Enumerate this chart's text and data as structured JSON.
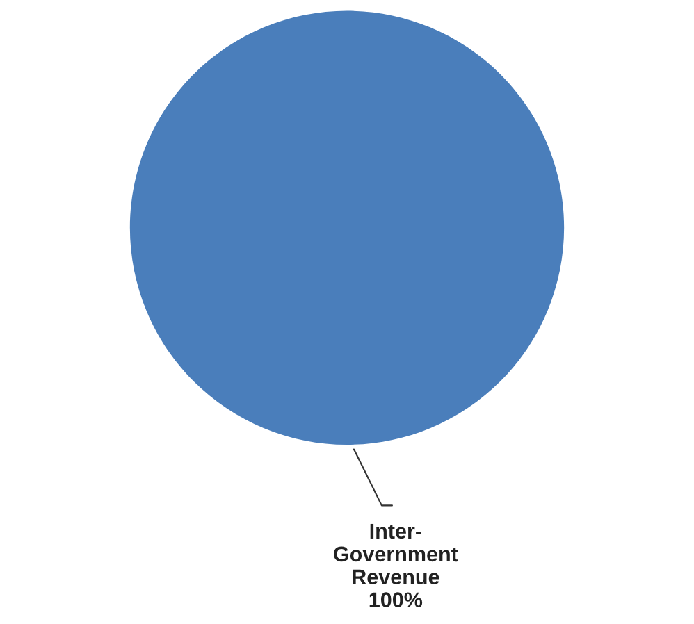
{
  "chart_data": {
    "type": "pie",
    "categories": [
      "Inter-Government Revenue"
    ],
    "values": [
      100
    ],
    "colors": [
      "#4a7ebb"
    ],
    "value_labels": [
      "100%"
    ],
    "legend": false
  }
}
